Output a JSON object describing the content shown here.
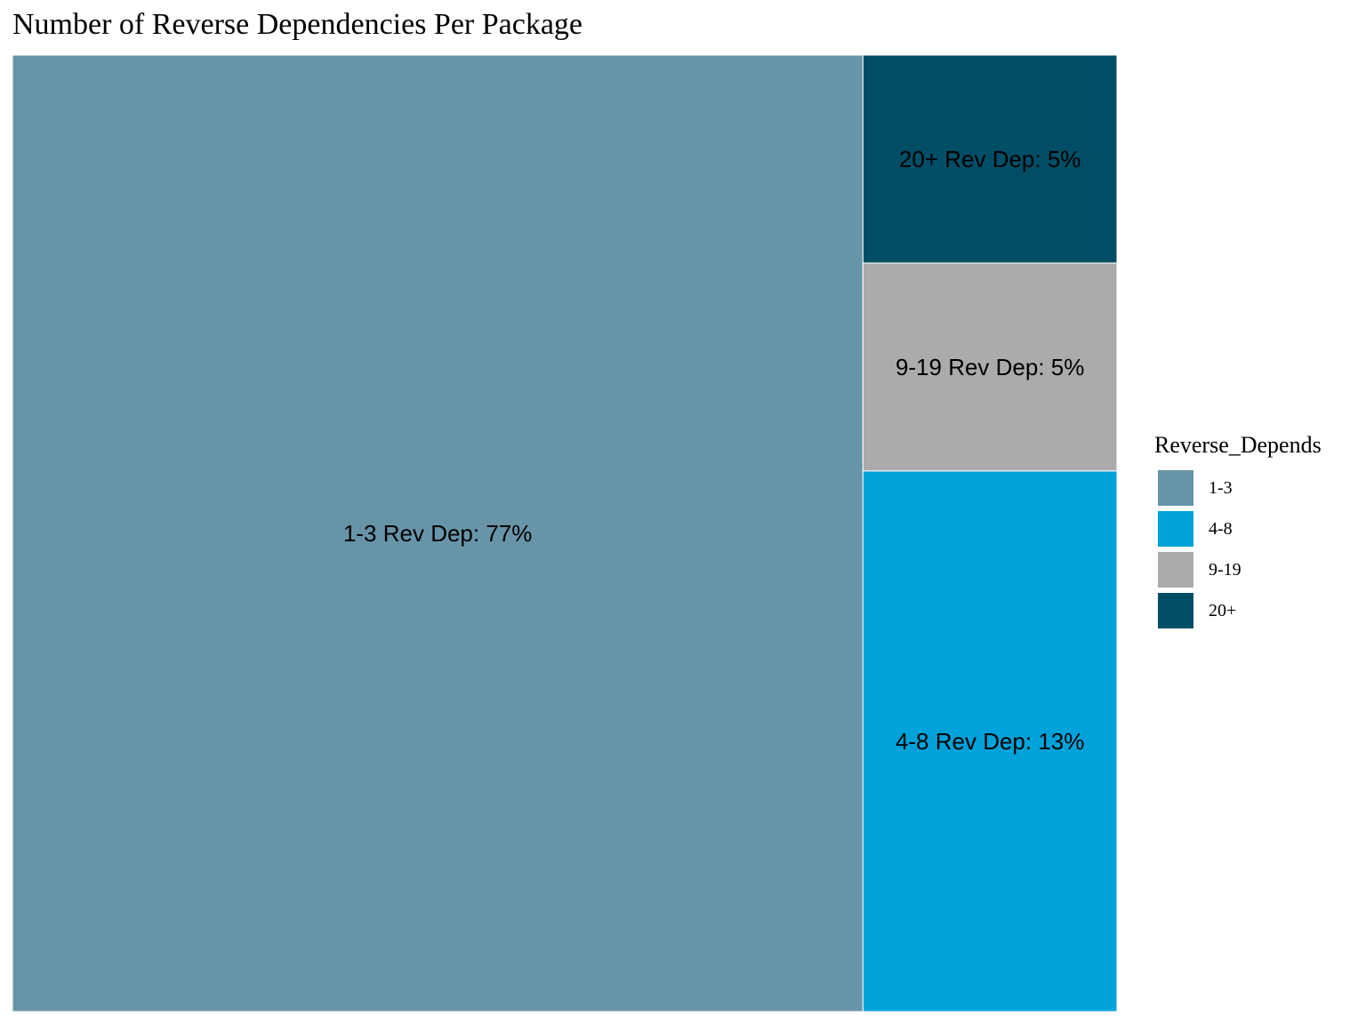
{
  "chart_data": {
    "type": "treemap",
    "title": "Number of Reverse Dependencies Per Package",
    "legend_title": "Reverse_Depends",
    "legend_position": "right",
    "categories": [
      "1-3",
      "4-8",
      "9-19",
      "20+"
    ],
    "values": [
      77,
      13,
      5,
      5
    ],
    "tile_labels": [
      "1-3 Rev Dep: 77%",
      "4-8 Rev Dep: 13%",
      "9-19 Rev Dep: 5%",
      "20+ Rev Dep: 5%"
    ],
    "colors": [
      "#6894a8",
      "#00a2d9",
      "#ababab",
      "#004e66"
    ]
  }
}
